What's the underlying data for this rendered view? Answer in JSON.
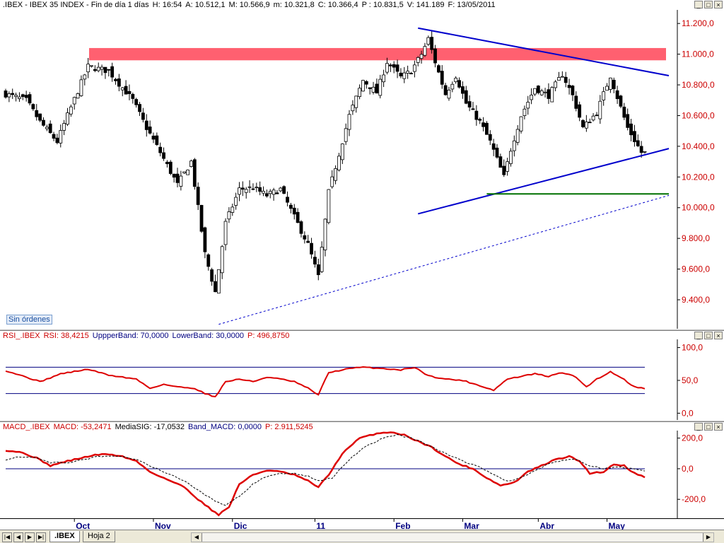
{
  "main_panel": {
    "header_parts": [
      ".IBEX - IBEX 35 INDEX - Fin de día 1 días",
      "H: 16:54",
      "A: 10.512,1",
      "M: 10.566,9",
      "m: 10.321,8",
      "C: 10.366,4",
      "P : 10.831,5",
      "V: 141.189",
      "F: 13/05/2011"
    ],
    "badge": "Sin órdenes"
  },
  "rsi_panel": {
    "header_parts": [
      {
        "text": "RSI_.IBEX",
        "color": "#cc0000"
      },
      {
        "text": "RSI: 38,4215",
        "color": "#cc0000"
      },
      {
        "text": "UppperBand: 70,0000",
        "color": "#000080"
      },
      {
        "text": "LowerBand: 30,0000",
        "color": "#000080"
      },
      {
        "text": "P: 496,8750",
        "color": "#cc0000"
      }
    ]
  },
  "macd_panel": {
    "header_parts": [
      {
        "text": "MACD_.IBEX",
        "color": "#cc0000"
      },
      {
        "text": "MACD: -53,2471",
        "color": "#cc0000"
      },
      {
        "text": "MediaSIG: -17,0532",
        "color": "#000000"
      },
      {
        "text": "Band_MACD: 0,0000",
        "color": "#000080"
      },
      {
        "text": "P: 2.911,5245",
        "color": "#cc0000"
      }
    ]
  },
  "tabs": {
    "items": [
      ".IBEX",
      "Hoja 2"
    ],
    "active": 0
  },
  "window_buttons": [
    "_",
    "□",
    "×"
  ],
  "nav_buttons": [
    "|◀",
    "◀",
    "▶",
    "▶|"
  ],
  "colors": {
    "up_candle": "#ffffff",
    "down_candle": "#000000",
    "resistance_zone": "#ff6070",
    "trendline": "#0000cc",
    "support": "#007000",
    "rsi_line": "#dd0000",
    "band_line": "#000080",
    "price_axis_text": "#cc0000"
  },
  "chart_data": [
    {
      "type": "candlestick",
      "x_ticks": [
        "Oct",
        "Nov",
        "Dic",
        "11",
        "Feb",
        "Mar",
        "Abr",
        "May"
      ],
      "x_tick_index": [
        20,
        43,
        66,
        90,
        113,
        133,
        155,
        175
      ],
      "y_ticks": [
        "11.200,0",
        "11.000,0",
        "10.800,0",
        "10.600,0",
        "10.400,0",
        "10.200,0",
        "10.000,0",
        "9.800,0",
        "9.600,0",
        "9.400,0"
      ],
      "y_tick_values": [
        11200,
        11000,
        10800,
        10600,
        10400,
        10200,
        10000,
        9800,
        9600,
        9400
      ],
      "ylim": [
        9225,
        11270
      ],
      "close_anchors": [
        [
          0,
          10740
        ],
        [
          6,
          10700
        ],
        [
          10,
          10560
        ],
        [
          15,
          10430
        ],
        [
          18,
          10600
        ],
        [
          24,
          10920
        ],
        [
          30,
          10890
        ],
        [
          37,
          10700
        ],
        [
          41,
          10520
        ],
        [
          45,
          10360
        ],
        [
          50,
          10150
        ],
        [
          54,
          10300
        ],
        [
          56,
          10000
        ],
        [
          58,
          9700
        ],
        [
          61,
          9450
        ],
        [
          64,
          9900
        ],
        [
          68,
          10120
        ],
        [
          72,
          10130
        ],
        [
          76,
          10080
        ],
        [
          80,
          10120
        ],
        [
          84,
          9940
        ],
        [
          88,
          9760
        ],
        [
          91,
          9550
        ],
        [
          94,
          10100
        ],
        [
          97,
          10350
        ],
        [
          100,
          10600
        ],
        [
          104,
          10830
        ],
        [
          108,
          10750
        ],
        [
          111,
          10950
        ],
        [
          115,
          10850
        ],
        [
          118,
          10890
        ],
        [
          121,
          11000
        ],
        [
          123,
          11100
        ],
        [
          125,
          10950
        ],
        [
          128,
          10740
        ],
        [
          131,
          10860
        ],
        [
          134,
          10680
        ],
        [
          138,
          10560
        ],
        [
          141,
          10430
        ],
        [
          145,
          10200
        ],
        [
          147,
          10380
        ],
        [
          150,
          10600
        ],
        [
          154,
          10780
        ],
        [
          158,
          10730
        ],
        [
          162,
          10870
        ],
        [
          165,
          10730
        ],
        [
          168,
          10520
        ],
        [
          172,
          10620
        ],
        [
          176,
          10860
        ],
        [
          178,
          10720
        ],
        [
          181,
          10520
        ],
        [
          185,
          10360
        ]
      ],
      "annotations": {
        "resistance_zone": [
          10960,
          11040
        ],
        "upper_trendline": [
          [
            120,
            11170
          ],
          [
            193,
            10860
          ]
        ],
        "lower_trendline": [
          [
            120,
            9960
          ],
          [
            193,
            10385
          ]
        ],
        "support_line": {
          "y": 10090,
          "x_from": 140,
          "x_to": 193
        },
        "dotted_trendline": [
          [
            62,
            9240
          ],
          [
            193,
            10080
          ]
        ]
      }
    },
    {
      "type": "line",
      "title": "RSI_.IBEX",
      "y_ticks": [
        "100,0",
        "50,0",
        "0,0"
      ],
      "y_tick_values": [
        100,
        50,
        0
      ],
      "ylim": [
        -6,
        106
      ],
      "bands": [
        70,
        30
      ],
      "series": [
        {
          "name": "RSI",
          "anchors": [
            [
              0,
              65
            ],
            [
              6,
              55
            ],
            [
              10,
              48
            ],
            [
              16,
              60
            ],
            [
              24,
              67
            ],
            [
              30,
              58
            ],
            [
              38,
              52
            ],
            [
              42,
              38
            ],
            [
              46,
              44
            ],
            [
              50,
              40
            ],
            [
              55,
              38
            ],
            [
              58,
              30
            ],
            [
              61,
              25
            ],
            [
              64,
              48
            ],
            [
              68,
              52
            ],
            [
              72,
              48
            ],
            [
              76,
              55
            ],
            [
              80,
              52
            ],
            [
              84,
              48
            ],
            [
              88,
              38
            ],
            [
              91,
              28
            ],
            [
              94,
              62
            ],
            [
              100,
              68
            ],
            [
              104,
              70
            ],
            [
              110,
              68
            ],
            [
              115,
              66
            ],
            [
              119,
              70
            ],
            [
              123,
              57
            ],
            [
              128,
              52
            ],
            [
              133,
              50
            ],
            [
              138,
              42
            ],
            [
              142,
              35
            ],
            [
              146,
              52
            ],
            [
              150,
              56
            ],
            [
              154,
              60
            ],
            [
              158,
              56
            ],
            [
              162,
              62
            ],
            [
              166,
              55
            ],
            [
              169,
              40
            ],
            [
              172,
              52
            ],
            [
              176,
              63
            ],
            [
              179,
              55
            ],
            [
              183,
              40
            ],
            [
              186,
              38
            ]
          ]
        }
      ]
    },
    {
      "type": "line",
      "title": "MACD_.IBEX",
      "y_ticks": [
        "200,0",
        "0,0",
        "-200,0"
      ],
      "y_tick_values": [
        200,
        0,
        -200
      ],
      "ylim": [
        -296,
        240
      ],
      "bands": [
        0
      ],
      "series": [
        {
          "name": "MACD",
          "anchors": [
            [
              0,
              120
            ],
            [
              4,
              110
            ],
            [
              9,
              70
            ],
            [
              13,
              20
            ],
            [
              18,
              50
            ],
            [
              22,
              70
            ],
            [
              26,
              90
            ],
            [
              30,
              95
            ],
            [
              34,
              80
            ],
            [
              38,
              50
            ],
            [
              42,
              -20
            ],
            [
              47,
              -70
            ],
            [
              52,
              -120
            ],
            [
              56,
              -200
            ],
            [
              60,
              -270
            ],
            [
              62,
              -300
            ],
            [
              65,
              -250
            ],
            [
              68,
              -100
            ],
            [
              72,
              -40
            ],
            [
              76,
              -10
            ],
            [
              80,
              -20
            ],
            [
              84,
              -40
            ],
            [
              88,
              -80
            ],
            [
              91,
              -120
            ],
            [
              94,
              -40
            ],
            [
              98,
              100
            ],
            [
              103,
              200
            ],
            [
              108,
              230
            ],
            [
              112,
              240
            ],
            [
              116,
              220
            ],
            [
              120,
              180
            ],
            [
              124,
              140
            ],
            [
              128,
              80
            ],
            [
              132,
              30
            ],
            [
              136,
              0
            ],
            [
              140,
              -60
            ],
            [
              144,
              -110
            ],
            [
              148,
              -90
            ],
            [
              152,
              -20
            ],
            [
              156,
              20
            ],
            [
              160,
              60
            ],
            [
              164,
              80
            ],
            [
              167,
              50
            ],
            [
              170,
              -30
            ],
            [
              174,
              -20
            ],
            [
              177,
              30
            ],
            [
              180,
              20
            ],
            [
              183,
              -30
            ],
            [
              186,
              -53
            ]
          ]
        },
        {
          "name": "MediaSIG",
          "anchors": [
            [
              0,
              60
            ],
            [
              4,
              80
            ],
            [
              9,
              70
            ],
            [
              13,
              40
            ],
            [
              18,
              40
            ],
            [
              22,
              55
            ],
            [
              26,
              75
            ],
            [
              30,
              85
            ],
            [
              34,
              80
            ],
            [
              38,
              60
            ],
            [
              42,
              20
            ],
            [
              47,
              -30
            ],
            [
              52,
              -80
            ],
            [
              56,
              -140
            ],
            [
              60,
              -200
            ],
            [
              64,
              -240
            ],
            [
              68,
              -180
            ],
            [
              72,
              -100
            ],
            [
              76,
              -50
            ],
            [
              80,
              -30
            ],
            [
              84,
              -30
            ],
            [
              88,
              -50
            ],
            [
              91,
              -80
            ],
            [
              95,
              -60
            ],
            [
              100,
              60
            ],
            [
              105,
              150
            ],
            [
              110,
              200
            ],
            [
              114,
              220
            ],
            [
              118,
              200
            ],
            [
              122,
              165
            ],
            [
              126,
              120
            ],
            [
              130,
              80
            ],
            [
              134,
              40
            ],
            [
              138,
              10
            ],
            [
              142,
              -40
            ],
            [
              146,
              -80
            ],
            [
              150,
              -60
            ],
            [
              154,
              -10
            ],
            [
              158,
              30
            ],
            [
              162,
              55
            ],
            [
              166,
              60
            ],
            [
              170,
              20
            ],
            [
              174,
              0
            ],
            [
              178,
              15
            ],
            [
              182,
              0
            ],
            [
              186,
              -17
            ]
          ]
        }
      ]
    }
  ]
}
